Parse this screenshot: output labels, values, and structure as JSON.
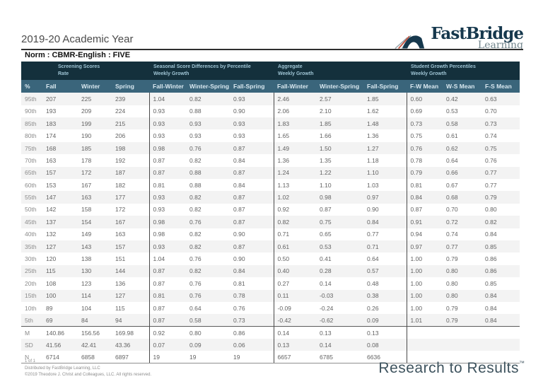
{
  "page": {
    "academic_year": "2019-20 Academic Year",
    "norm_title": "Norm : CBMR-English : FIVE"
  },
  "logo": {
    "brand": "FastBridge",
    "sub": "Learning"
  },
  "table": {
    "groups": [
      {
        "line1": "Screening Scores",
        "line2": "Rate"
      },
      {
        "line1": "Seasonal Score Differences by Percentile",
        "line2": "Weekly Growth"
      },
      {
        "line1": "Aggregate",
        "line2": "Weekly Growth"
      },
      {
        "line1": "Student Growth Percentiles",
        "line2": "Weekly Growth"
      }
    ],
    "columns": [
      "%",
      "Fall",
      "Winter",
      "Spring",
      "Fall-Winter",
      "Winter-Spring",
      "Fall-Spring",
      "Fall-Winter",
      "Winter-Spring",
      "Fall-Spring",
      "F-W Mean",
      "W-S Mean",
      "F-S Mean"
    ],
    "rows": [
      [
        "95th",
        "207",
        "225",
        "239",
        "1.04",
        "0.82",
        "0.93",
        "2.46",
        "2.57",
        "1.85",
        "0.60",
        "0.42",
        "0.63"
      ],
      [
        "90th",
        "193",
        "209",
        "224",
        "0.93",
        "0.88",
        "0.90",
        "2.06",
        "2.10",
        "1.62",
        "0.69",
        "0.53",
        "0.70"
      ],
      [
        "85th",
        "183",
        "199",
        "215",
        "0.93",
        "0.93",
        "0.93",
        "1.83",
        "1.85",
        "1.48",
        "0.73",
        "0.58",
        "0.73"
      ],
      [
        "80th",
        "174",
        "190",
        "206",
        "0.93",
        "0.93",
        "0.93",
        "1.65",
        "1.66",
        "1.36",
        "0.75",
        "0.61",
        "0.74"
      ],
      [
        "75th",
        "168",
        "185",
        "198",
        "0.98",
        "0.76",
        "0.87",
        "1.49",
        "1.50",
        "1.27",
        "0.76",
        "0.62",
        "0.75"
      ],
      [
        "70th",
        "163",
        "178",
        "192",
        "0.87",
        "0.82",
        "0.84",
        "1.36",
        "1.35",
        "1.18",
        "0.78",
        "0.64",
        "0.76"
      ],
      [
        "65th",
        "157",
        "172",
        "187",
        "0.87",
        "0.88",
        "0.87",
        "1.24",
        "1.22",
        "1.10",
        "0.79",
        "0.66",
        "0.77"
      ],
      [
        "60th",
        "153",
        "167",
        "182",
        "0.81",
        "0.88",
        "0.84",
        "1.13",
        "1.10",
        "1.03",
        "0.81",
        "0.67",
        "0.77"
      ],
      [
        "55th",
        "147",
        "163",
        "177",
        "0.93",
        "0.82",
        "0.87",
        "1.02",
        "0.98",
        "0.97",
        "0.84",
        "0.68",
        "0.79"
      ],
      [
        "50th",
        "142",
        "158",
        "172",
        "0.93",
        "0.82",
        "0.87",
        "0.92",
        "0.87",
        "0.90",
        "0.87",
        "0.70",
        "0.80"
      ],
      [
        "45th",
        "137",
        "154",
        "167",
        "0.98",
        "0.76",
        "0.87",
        "0.82",
        "0.75",
        "0.84",
        "0.91",
        "0.72",
        "0.82"
      ],
      [
        "40th",
        "132",
        "149",
        "163",
        "0.98",
        "0.82",
        "0.90",
        "0.71",
        "0.65",
        "0.77",
        "0.94",
        "0.74",
        "0.84"
      ],
      [
        "35th",
        "127",
        "143",
        "157",
        "0.93",
        "0.82",
        "0.87",
        "0.61",
        "0.53",
        "0.71",
        "0.97",
        "0.77",
        "0.85"
      ],
      [
        "30th",
        "120",
        "138",
        "151",
        "1.04",
        "0.76",
        "0.90",
        "0.50",
        "0.41",
        "0.64",
        "1.00",
        "0.79",
        "0.86"
      ],
      [
        "25th",
        "115",
        "130",
        "144",
        "0.87",
        "0.82",
        "0.84",
        "0.40",
        "0.28",
        "0.57",
        "1.00",
        "0.80",
        "0.86"
      ],
      [
        "20th",
        "108",
        "123",
        "136",
        "0.87",
        "0.76",
        "0.81",
        "0.27",
        "0.14",
        "0.48",
        "1.00",
        "0.80",
        "0.85"
      ],
      [
        "15th",
        "100",
        "114",
        "127",
        "0.81",
        "0.76",
        "0.78",
        "0.11",
        "-0.03",
        "0.38",
        "1.00",
        "0.80",
        "0.84"
      ],
      [
        "10th",
        "89",
        "104",
        "115",
        "0.87",
        "0.64",
        "0.76",
        "-0.09",
        "-0.24",
        "0.26",
        "1.00",
        "0.79",
        "0.84"
      ],
      [
        "5th",
        "69",
        "84",
        "94",
        "0.87",
        "0.58",
        "0.73",
        "-0.42",
        "-0.62",
        "0.09",
        "1.01",
        "0.79",
        "0.84"
      ]
    ],
    "summary_rows": [
      [
        "M",
        "140.86",
        "156.56",
        "169.98",
        "0.92",
        "0.80",
        "0.86",
        "0.14",
        "0.13",
        "0.13",
        "",
        "",
        ""
      ],
      [
        "SD",
        "41.56",
        "42.41",
        "43.36",
        "0.07",
        "0.09",
        "0.06",
        "0.13",
        "0.14",
        "0.08",
        "",
        "",
        ""
      ],
      [
        "N",
        "6714",
        "6858",
        "6897",
        "19",
        "19",
        "19",
        "6657",
        "6785",
        "6636",
        "",
        "",
        ""
      ]
    ]
  },
  "footer": {
    "page_label": "1 of 1",
    "distributed_by": "Distributed by FastBridge Learning, LLC",
    "copyright": "©2019 Theodore J. Christ and Colleagues, LLC. All rights reserved.",
    "tagline": "Research to Results",
    "trademark": "™"
  },
  "colors": {
    "group_header_bg": "#14303c",
    "column_header_bg": "#3a657b",
    "column_header_text": "#d9e8f0",
    "group_header_text": "#9fc4d4",
    "row_stripe": "#f3f3f3",
    "body_text": "#626262",
    "brand_navy": "#16384d",
    "brand_gray": "#73868d",
    "accent_red": "#c24e3a",
    "tagline_color": "#3e535e"
  }
}
